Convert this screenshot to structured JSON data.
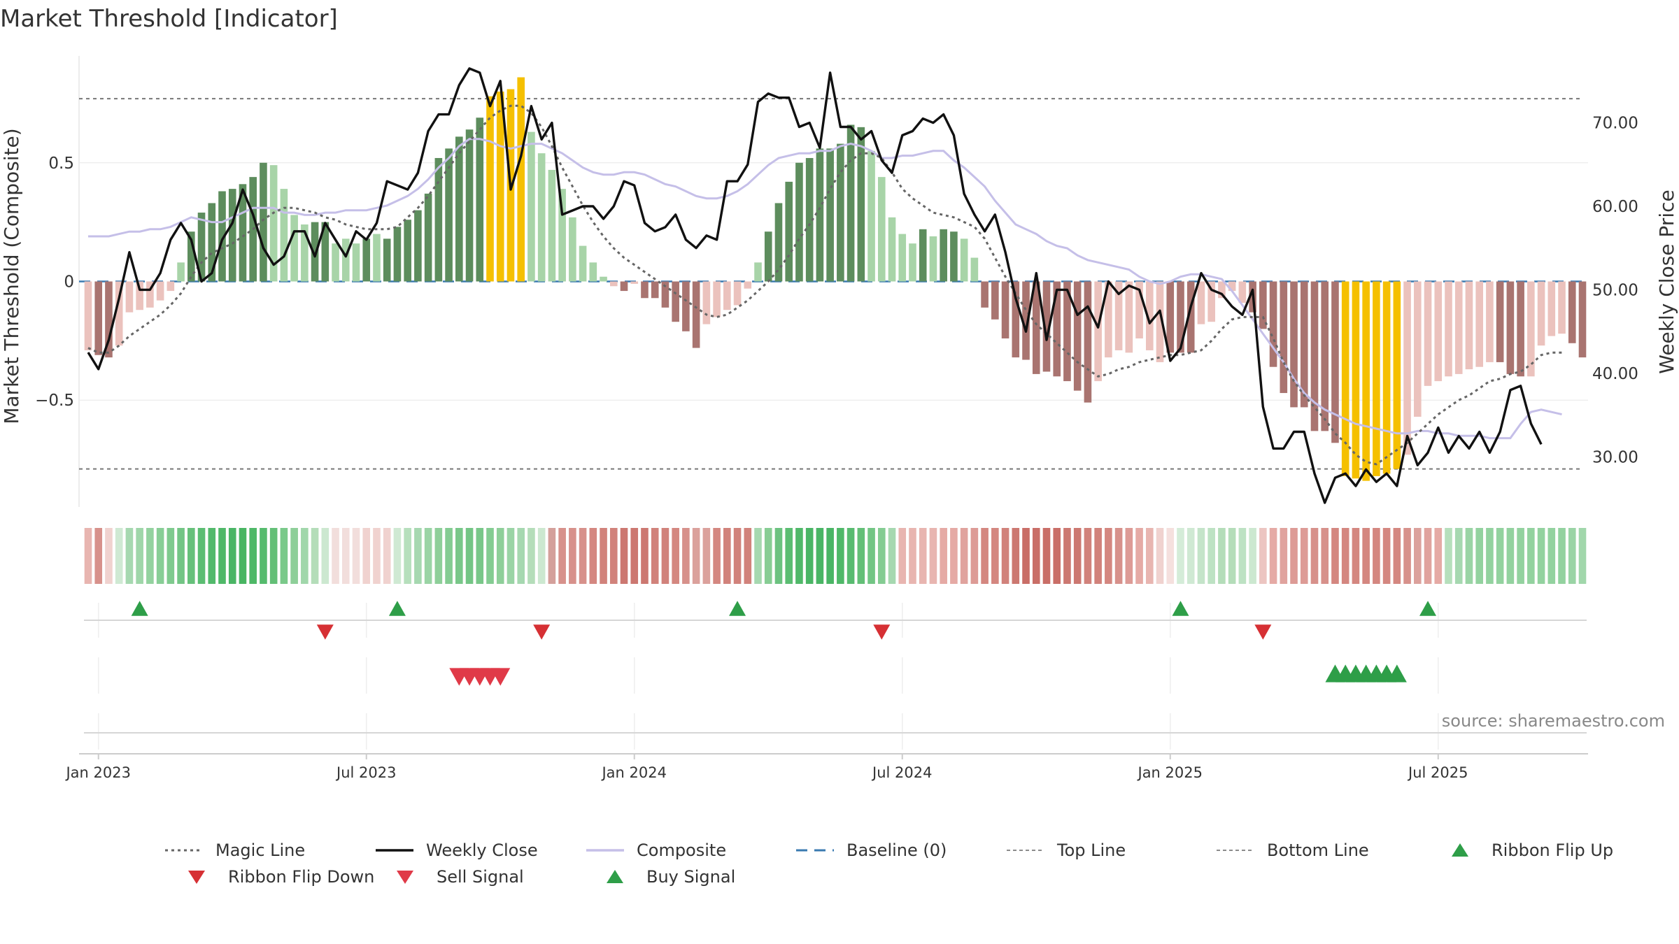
{
  "chart_data": {
    "type": "bar",
    "title": "Market Threshold [Indicator]",
    "ylabel_left": "Market Threshold (Composite)",
    "ylabel_right": "Weekly Close Price",
    "source": "source: sharemaestro.com",
    "left_axis": {
      "ylim": [
        -0.95,
        0.95
      ],
      "ticks": [
        -0.5,
        0,
        0.5
      ],
      "tick_labels": [
        "−0.5",
        "0",
        "0.5"
      ]
    },
    "right_axis": {
      "ylim": [
        24,
        78
      ],
      "ticks": [
        30,
        40,
        50,
        60,
        70
      ],
      "tick_labels": [
        "30.00",
        "40.00",
        "50.00",
        "60.00",
        "70.00"
      ]
    },
    "x_ticks": [
      {
        "label": "Jan 2023",
        "week": 1
      },
      {
        "label": "Jul 2023",
        "week": 27
      },
      {
        "label": "Jan 2024",
        "week": 53
      },
      {
        "label": "Jul 2024",
        "week": 79
      },
      {
        "label": "Jan 2025",
        "week": 105
      },
      {
        "label": "Jul 2025",
        "week": 131
      }
    ],
    "top_line": 0.77,
    "bottom_line": -0.79,
    "composite": [
      -0.29,
      -0.31,
      -0.32,
      -0.27,
      -0.13,
      -0.12,
      -0.11,
      -0.08,
      -0.04,
      0.08,
      0.21,
      0.29,
      0.33,
      0.38,
      0.39,
      0.41,
      0.44,
      0.5,
      0.49,
      0.39,
      0.28,
      0.24,
      0.25,
      0.25,
      0.16,
      0.18,
      0.16,
      0.18,
      0.2,
      0.18,
      0.23,
      0.26,
      0.3,
      0.37,
      0.52,
      0.56,
      0.61,
      0.64,
      0.69,
      0.78,
      0.8,
      0.81,
      0.86,
      0.63,
      0.54,
      0.47,
      0.39,
      0.27,
      0.15,
      0.08,
      0.02,
      -0.02,
      -0.04,
      -0.01,
      -0.07,
      -0.07,
      -0.11,
      -0.17,
      -0.21,
      -0.28,
      -0.18,
      -0.15,
      -0.12,
      -0.1,
      -0.03,
      0.08,
      0.21,
      0.33,
      0.42,
      0.5,
      0.52,
      0.56,
      0.56,
      0.58,
      0.66,
      0.65,
      0.55,
      0.44,
      0.27,
      0.2,
      0.16,
      0.22,
      0.19,
      0.22,
      0.21,
      0.18,
      0.1,
      -0.11,
      -0.16,
      -0.24,
      -0.32,
      -0.33,
      -0.39,
      -0.38,
      -0.4,
      -0.42,
      -0.46,
      -0.51,
      -0.42,
      -0.32,
      -0.29,
      -0.3,
      -0.24,
      -0.29,
      -0.34,
      -0.3,
      -0.3,
      -0.3,
      -0.18,
      -0.17,
      -0.07,
      -0.04,
      -0.09,
      -0.13,
      -0.2,
      -0.36,
      -0.47,
      -0.53,
      -0.53,
      -0.63,
      -0.63,
      -0.68,
      -0.82,
      -0.83,
      -0.84,
      -0.82,
      -0.81,
      -0.79,
      -0.73,
      -0.57,
      -0.44,
      -0.42,
      -0.4,
      -0.39,
      -0.37,
      -0.36,
      -0.34,
      -0.34,
      -0.39,
      -0.4,
      -0.4,
      -0.27,
      -0.23,
      -0.22,
      -0.26,
      -0.32
    ],
    "bar_colors": [
      "#ebc2bd",
      "#a97470",
      "#a97470",
      "#ebc2bd",
      "#ebc2bd",
      "#ebc2bd",
      "#ebc2bd",
      "#ebc2bd",
      "#ebc2bd",
      "#a8d4a8",
      "#5d8d5d",
      "#5d8d5d",
      "#5d8d5d",
      "#5d8d5d",
      "#5d8d5d",
      "#5d8d5d",
      "#5d8d5d",
      "#5d8d5d",
      "#a8d4a8",
      "#a8d4a8",
      "#a8d4a8",
      "#a8d4a8",
      "#5d8d5d",
      "#5d8d5d",
      "#a8d4a8",
      "#a8d4a8",
      "#a8d4a8",
      "#5d8d5d",
      "#a8d4a8",
      "#5d8d5d",
      "#5d8d5d",
      "#5d8d5d",
      "#5d8d5d",
      "#5d8d5d",
      "#5d8d5d",
      "#5d8d5d",
      "#5d8d5d",
      "#5d8d5d",
      "#5d8d5d",
      "#f5c000",
      "#f5c000",
      "#f5c000",
      "#f5c000",
      "#a8d4a8",
      "#a8d4a8",
      "#a8d4a8",
      "#a8d4a8",
      "#a8d4a8",
      "#a8d4a8",
      "#a8d4a8",
      "#a8d4a8",
      "#ebc2bd",
      "#a97470",
      "#ebc2bd",
      "#a97470",
      "#a97470",
      "#a97470",
      "#a97470",
      "#a97470",
      "#a97470",
      "#ebc2bd",
      "#ebc2bd",
      "#ebc2bd",
      "#ebc2bd",
      "#ebc2bd",
      "#a8d4a8",
      "#5d8d5d",
      "#5d8d5d",
      "#5d8d5d",
      "#5d8d5d",
      "#5d8d5d",
      "#5d8d5d",
      "#5d8d5d",
      "#5d8d5d",
      "#5d8d5d",
      "#5d8d5d",
      "#a8d4a8",
      "#a8d4a8",
      "#a8d4a8",
      "#a8d4a8",
      "#a8d4a8",
      "#5d8d5d",
      "#a8d4a8",
      "#5d8d5d",
      "#5d8d5d",
      "#a8d4a8",
      "#a8d4a8",
      "#a97470",
      "#a97470",
      "#a97470",
      "#a97470",
      "#a97470",
      "#a97470",
      "#a97470",
      "#a97470",
      "#a97470",
      "#a97470",
      "#a97470",
      "#ebc2bd",
      "#ebc2bd",
      "#ebc2bd",
      "#ebc2bd",
      "#ebc2bd",
      "#ebc2bd",
      "#ebc2bd",
      "#a97470",
      "#a97470",
      "#a97470",
      "#ebc2bd",
      "#ebc2bd",
      "#ebc2bd",
      "#ebc2bd",
      "#ebc2bd",
      "#a97470",
      "#a97470",
      "#a97470",
      "#a97470",
      "#a97470",
      "#a97470",
      "#a97470",
      "#a97470",
      "#a97470",
      "#f5c000",
      "#f5c000",
      "#f5c000",
      "#f5c000",
      "#f5c000",
      "#f5c000",
      "#ebc2bd",
      "#ebc2bd",
      "#ebc2bd",
      "#ebc2bd",
      "#ebc2bd",
      "#ebc2bd",
      "#ebc2bd",
      "#ebc2bd",
      "#ebc2bd",
      "#a97470",
      "#a97470",
      "#a97470",
      "#ebc2bd",
      "#ebc2bd",
      "#ebc2bd",
      "#ebc2bd",
      "#a97470",
      "#a97470"
    ],
    "weekly_close": [
      42.5,
      40.5,
      44,
      49,
      54.5,
      50,
      50,
      52,
      56,
      58,
      56,
      51,
      52,
      56,
      58,
      62,
      59,
      55,
      53,
      54,
      57,
      57,
      54,
      58,
      56,
      54,
      57,
      56,
      58,
      63,
      62.5,
      62,
      64,
      69,
      71,
      71,
      74.5,
      76.5,
      76,
      72,
      75,
      62,
      66,
      72,
      68,
      70,
      59,
      59.5,
      60,
      60,
      58.5,
      60,
      63,
      62.5,
      58,
      57,
      57.5,
      59,
      56,
      55,
      56.5,
      56,
      63,
      63,
      65,
      72.5,
      73.5,
      73,
      73,
      69.5,
      70,
      67,
      76,
      69.5,
      69.5,
      68,
      69,
      65.5,
      64,
      68.5,
      69,
      70.5,
      70,
      71,
      68.5,
      61.5,
      59,
      57,
      59,
      54.5,
      49,
      45,
      52,
      44,
      50,
      50,
      47,
      48,
      45.5,
      51,
      49.5,
      50.5,
      50,
      46,
      47.5,
      41.5,
      43,
      48,
      52,
      50,
      49.5,
      48,
      47,
      50,
      36,
      31,
      31,
      33,
      33,
      28,
      24.5,
      27.5,
      28,
      26.5,
      28.5,
      27,
      28,
      26.5,
      32.5,
      29,
      30.5,
      33.5,
      30.5,
      32.5,
      31,
      33,
      30.5,
      33,
      38,
      38.5,
      34,
      31.5
    ],
    "magic_line": [
      -0.28,
      -0.3,
      -0.3,
      -0.27,
      -0.23,
      -0.2,
      -0.17,
      -0.14,
      -0.1,
      -0.05,
      0.02,
      0.08,
      0.12,
      0.14,
      0.16,
      0.19,
      0.22,
      0.26,
      0.29,
      0.31,
      0.31,
      0.3,
      0.29,
      0.27,
      0.26,
      0.24,
      0.23,
      0.22,
      0.22,
      0.22,
      0.23,
      0.27,
      0.31,
      0.36,
      0.42,
      0.48,
      0.54,
      0.59,
      0.64,
      0.69,
      0.72,
      0.74,
      0.74,
      0.71,
      0.65,
      0.57,
      0.48,
      0.4,
      0.32,
      0.25,
      0.19,
      0.14,
      0.1,
      0.07,
      0.04,
      0.01,
      -0.02,
      -0.05,
      -0.08,
      -0.11,
      -0.14,
      -0.15,
      -0.14,
      -0.11,
      -0.08,
      -0.04,
      0,
      0.05,
      0.11,
      0.18,
      0.24,
      0.31,
      0.39,
      0.46,
      0.51,
      0.54,
      0.54,
      0.52,
      0.46,
      0.39,
      0.35,
      0.32,
      0.29,
      0.28,
      0.27,
      0.25,
      0.23,
      0.18,
      0.1,
      0.02,
      -0.05,
      -0.12,
      -0.18,
      -0.22,
      -0.26,
      -0.3,
      -0.34,
      -0.37,
      -0.4,
      -0.39,
      -0.37,
      -0.36,
      -0.34,
      -0.33,
      -0.32,
      -0.31,
      -0.31,
      -0.3,
      -0.29,
      -0.25,
      -0.2,
      -0.16,
      -0.15,
      -0.15,
      -0.15,
      -0.24,
      -0.34,
      -0.42,
      -0.48,
      -0.53,
      -0.58,
      -0.64,
      -0.68,
      -0.73,
      -0.76,
      -0.77,
      -0.74,
      -0.71,
      -0.68,
      -0.64,
      -0.6,
      -0.56,
      -0.53,
      -0.5,
      -0.48,
      -0.45,
      -0.42,
      -0.41,
      -0.39,
      -0.38,
      -0.35,
      -0.31,
      -0.3,
      -0.3
    ],
    "composite_line": [
      0.19,
      0.19,
      0.19,
      0.2,
      0.21,
      0.21,
      0.22,
      0.22,
      0.23,
      0.25,
      0.27,
      0.26,
      0.25,
      0.25,
      0.27,
      0.29,
      0.31,
      0.31,
      0.31,
      0.29,
      0.29,
      0.28,
      0.28,
      0.29,
      0.29,
      0.3,
      0.3,
      0.3,
      0.31,
      0.32,
      0.34,
      0.36,
      0.39,
      0.43,
      0.48,
      0.52,
      0.57,
      0.6,
      0.6,
      0.59,
      0.57,
      0.56,
      0.57,
      0.58,
      0.58,
      0.56,
      0.54,
      0.51,
      0.48,
      0.46,
      0.45,
      0.45,
      0.46,
      0.46,
      0.45,
      0.43,
      0.41,
      0.4,
      0.38,
      0.36,
      0.35,
      0.35,
      0.36,
      0.38,
      0.41,
      0.45,
      0.49,
      0.52,
      0.53,
      0.54,
      0.54,
      0.55,
      0.55,
      0.57,
      0.58,
      0.57,
      0.55,
      0.52,
      0.52,
      0.53,
      0.53,
      0.54,
      0.55,
      0.55,
      0.51,
      0.48,
      0.44,
      0.4,
      0.34,
      0.29,
      0.24,
      0.22,
      0.2,
      0.17,
      0.15,
      0.14,
      0.11,
      0.09,
      0.08,
      0.07,
      0.06,
      0.05,
      0.02,
      0,
      -0.01,
      0,
      0.02,
      0.03,
      0.03,
      0.02,
      0.01,
      -0.04,
      -0.1,
      -0.16,
      -0.22,
      -0.28,
      -0.34,
      -0.41,
      -0.47,
      -0.51,
      -0.54,
      -0.56,
      -0.58,
      -0.6,
      -0.61,
      -0.62,
      -0.63,
      -0.64,
      -0.64,
      -0.63,
      -0.63,
      -0.64,
      -0.64,
      -0.65,
      -0.65,
      -0.65,
      -0.66,
      -0.66,
      -0.66,
      -0.6,
      -0.55,
      -0.54,
      -0.55,
      -0.56
    ],
    "ribbon_colors": [
      "#e8b5b0",
      "#d7918b",
      "#f0d2cf",
      "#cfe9d3",
      "#a6d8b0",
      "#9fd6a9",
      "#93d29f",
      "#88ce96",
      "#7fca8e",
      "#73c585",
      "#66c07a",
      "#5bbd72",
      "#52b96b",
      "#4fb868",
      "#4ab565",
      "#48b562",
      "#4eb867",
      "#55bb6d",
      "#63bf77",
      "#7ac98a",
      "#8ecf99",
      "#a1d7ab",
      "#b4ddb9",
      "#cce8d0",
      "#f2dedc",
      "#f2dedc",
      "#f2dedc",
      "#f0d2cf",
      "#f0d2cf",
      "#f0d2cf",
      "#cfe9d3",
      "#b6dfbc",
      "#a6d8b0",
      "#9ad4a5",
      "#8ecf99",
      "#84cc92",
      "#79c789",
      "#74c585",
      "#79c789",
      "#84cc92",
      "#8ecf99",
      "#9ad4a5",
      "#a6d8b0",
      "#b4ddb9",
      "#cce8d0",
      "#d4a09b",
      "#d7918b",
      "#d7918b",
      "#d7918b",
      "#d48780",
      "#d1827b",
      "#d1827b",
      "#cc7871",
      "#cc7871",
      "#cc7871",
      "#d1827b",
      "#d1827b",
      "#d48780",
      "#d7918b",
      "#dba19c",
      "#dba19c",
      "#d48780",
      "#d1827b",
      "#d1827b",
      "#d1827b",
      "#a6d8b0",
      "#87cd94",
      "#6cc280",
      "#5bbd72",
      "#50b869",
      "#4ab565",
      "#4ab565",
      "#4ab565",
      "#4fb868",
      "#58bb70",
      "#63bf77",
      "#72c584",
      "#84cc92",
      "#a6d8b0",
      "#e8b5b0",
      "#e8b5b0",
      "#e8b5b0",
      "#e8b5b0",
      "#e5aaa5",
      "#e5aaa5",
      "#e0a39e",
      "#dd9b96",
      "#d48780",
      "#d48780",
      "#d1827b",
      "#cc7871",
      "#c96e67",
      "#c96e67",
      "#c96e67",
      "#c96e67",
      "#cc7871",
      "#cc7871",
      "#d1827b",
      "#d1827b",
      "#d48780",
      "#d7918b",
      "#dd9b96",
      "#e5aaa5",
      "#e8b5b0",
      "#f0d2cf",
      "#f5e0de",
      "#d4ecd8",
      "#cfe9d3",
      "#c4e4c9",
      "#bde2c3",
      "#b4ddb9",
      "#b4ddb9",
      "#bde2c3",
      "#cce8d0",
      "#ecc5c1",
      "#e5aaa5",
      "#e0a39e",
      "#dd9b96",
      "#dd9b96",
      "#d7918b",
      "#d7918b",
      "#d48780",
      "#d48780",
      "#d48780",
      "#d48780",
      "#d48780",
      "#d48780",
      "#d48780",
      "#d7918b",
      "#dba19c",
      "#e0a39e",
      "#e5aaa5",
      "#b6dfbc",
      "#a6d8b0",
      "#9ad4a5",
      "#93d29f",
      "#93d29f",
      "#93d29f",
      "#93d29f",
      "#93d29f",
      "#93d29f",
      "#93d29f",
      "#93d29f",
      "#93d29f",
      "#9ad4a5",
      "#a1d7ab"
    ],
    "ribbon_flip_up": [
      5,
      30,
      63,
      106,
      130
    ],
    "ribbon_flip_down": [
      23,
      44,
      77,
      114
    ],
    "sell_signals": [
      36,
      37,
      38,
      39,
      40
    ],
    "buy_signals": [
      121,
      122,
      123,
      124,
      125,
      126,
      127
    ],
    "legend": [
      "Magic Line",
      "Weekly Close",
      "Composite",
      "Baseline (0)",
      "Top Line",
      "Bottom Line",
      "Ribbon Flip Up",
      "Ribbon Flip Down",
      "Sell Signal",
      "Buy Signal"
    ],
    "colors": {
      "weekly_close": "#111111",
      "magic_line": "#666666",
      "composite_line": "#c5bfe8",
      "baseline": "#3a7ab0",
      "ref_line": "#777777",
      "flip_up": "#2e9e48",
      "flip_down": "#d63034",
      "sell": "#e03a48",
      "buy": "#2e9e48"
    }
  }
}
